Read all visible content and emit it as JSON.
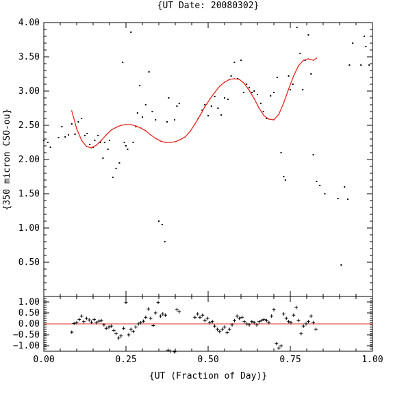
{
  "chart_data": [
    {
      "type": "scatter",
      "title": "{UT Date: 20080302}",
      "ylabel": "{350 micron CSO-ou}",
      "xlim": [
        0,
        1
      ],
      "ylim": [
        0.0,
        4.0
      ],
      "xticks": [
        0.0,
        0.25,
        0.5,
        0.75,
        1.0
      ],
      "xtick_labels": [
        "0.00",
        "0.25",
        "0.50",
        "0.75",
        "1.00"
      ],
      "yticks": [
        0.5,
        1.0,
        1.5,
        2.0,
        2.5,
        3.0,
        3.5,
        4.0
      ],
      "ytick_labels": [
        "0.50",
        "1.00",
        "1.50",
        "2.00",
        "2.50",
        "3.00",
        "3.50",
        "4.00"
      ],
      "points_x": [
        0.0,
        0.012,
        0.02,
        0.045,
        0.055,
        0.065,
        0.075,
        0.085,
        0.095,
        0.105,
        0.115,
        0.125,
        0.132,
        0.14,
        0.15,
        0.155,
        0.165,
        0.172,
        0.18,
        0.185,
        0.195,
        0.2,
        0.21,
        0.22,
        0.23,
        0.24,
        0.245,
        0.25,
        0.255,
        0.265,
        0.272,
        0.28,
        0.285,
        0.292,
        0.3,
        0.31,
        0.32,
        0.33,
        0.34,
        0.35,
        0.36,
        0.368,
        0.375,
        0.38,
        0.398,
        0.405,
        0.412,
        0.47,
        0.482,
        0.49,
        0.5,
        0.51,
        0.52,
        0.53,
        0.54,
        0.55,
        0.56,
        0.57,
        0.58,
        0.59,
        0.6,
        0.608,
        0.617,
        0.625,
        0.633,
        0.64,
        0.65,
        0.66,
        0.668,
        0.678,
        0.69,
        0.7,
        0.71,
        0.722,
        0.73,
        0.735,
        0.745,
        0.75,
        0.758,
        0.77,
        0.78,
        0.788,
        0.795,
        0.805,
        0.813,
        0.82,
        0.83,
        0.84,
        0.855,
        0.895,
        0.905,
        0.915,
        0.925,
        0.93,
        0.94,
        0.965,
        0.975,
        0.98,
        0.99
      ],
      "points_y": [
        2.28,
        2.25,
        2.18,
        2.32,
        2.48,
        2.33,
        2.36,
        2.52,
        2.37,
        2.55,
        2.6,
        2.35,
        2.38,
        2.22,
        2.18,
        2.28,
        2.35,
        2.25,
        2.02,
        2.25,
        2.15,
        2.28,
        1.74,
        1.87,
        1.95,
        3.42,
        2.25,
        2.2,
        2.15,
        3.86,
        2.25,
        2.48,
        2.68,
        3.08,
        2.62,
        2.8,
        3.28,
        2.7,
        2.58,
        1.1,
        1.05,
        0.8,
        2.55,
        2.9,
        2.58,
        2.78,
        2.82,
        2.6,
        2.72,
        2.8,
        2.64,
        2.78,
        2.92,
        2.75,
        2.65,
        2.9,
        2.88,
        3.22,
        3.42,
        3.18,
        3.45,
        2.98,
        3.1,
        3.05,
        2.98,
        3.0,
        2.95,
        2.82,
        2.7,
        2.6,
        2.93,
        2.98,
        3.2,
        2.1,
        1.75,
        1.7,
        3.22,
        3.02,
        3.1,
        3.93,
        3.55,
        3.02,
        3.45,
        3.82,
        3.25,
        2.07,
        1.68,
        1.62,
        1.5,
        1.43,
        0.46,
        1.6,
        1.42,
        3.38,
        3.7,
        3.38,
        3.8,
        3.65,
        3.38
      ],
      "fit_x": [
        0.085,
        0.1,
        0.115,
        0.13,
        0.145,
        0.16,
        0.175,
        0.19,
        0.205,
        0.22,
        0.235,
        0.25,
        0.265,
        0.28,
        0.295,
        0.31,
        0.325,
        0.34,
        0.355,
        0.37,
        0.385,
        0.4,
        0.415,
        0.43,
        0.445,
        0.46,
        0.475,
        0.49,
        0.505,
        0.52,
        0.535,
        0.55,
        0.565,
        0.58,
        0.595,
        0.61,
        0.625,
        0.64,
        0.655,
        0.67,
        0.685,
        0.7,
        0.715,
        0.73,
        0.745,
        0.76,
        0.775,
        0.79,
        0.805,
        0.82,
        0.83
      ],
      "fit_y": [
        2.71,
        2.45,
        2.28,
        2.19,
        2.17,
        2.21,
        2.28,
        2.36,
        2.43,
        2.47,
        2.5,
        2.51,
        2.51,
        2.49,
        2.46,
        2.42,
        2.36,
        2.31,
        2.27,
        2.25,
        2.25,
        2.26,
        2.29,
        2.33,
        2.41,
        2.52,
        2.64,
        2.77,
        2.88,
        2.98,
        3.07,
        3.13,
        3.17,
        3.18,
        3.17,
        3.11,
        3.01,
        2.89,
        2.75,
        2.64,
        2.59,
        2.58,
        2.66,
        2.83,
        3.03,
        3.22,
        3.37,
        3.45,
        3.47,
        3.45,
        3.48
      ],
      "fit_color": "#e8281e"
    },
    {
      "type": "scatter",
      "xlabel": "{UT (Fraction of Day)}",
      "xlim": [
        0,
        1
      ],
      "ylim": [
        -1.25,
        1.25
      ],
      "xticks": [
        0.0,
        0.25,
        0.5,
        0.75,
        1.0
      ],
      "xtick_labels": [
        "0.00",
        "0.25",
        "0.50",
        "0.75",
        "1.00"
      ],
      "yticks": [
        -1.0,
        -0.5,
        0.0,
        0.5,
        1.0
      ],
      "ytick_labels": [
        "−1.00",
        "−0.50",
        "0.00",
        "0.50",
        "1.00"
      ],
      "zero_line_color": "#e8281e",
      "points_x": [
        0.085,
        0.092,
        0.1,
        0.108,
        0.115,
        0.122,
        0.13,
        0.138,
        0.145,
        0.153,
        0.16,
        0.168,
        0.175,
        0.183,
        0.19,
        0.198,
        0.205,
        0.213,
        0.22,
        0.228,
        0.235,
        0.243,
        0.25,
        0.258,
        0.265,
        0.272,
        0.28,
        0.288,
        0.295,
        0.303,
        0.31,
        0.318,
        0.325,
        0.333,
        0.34,
        0.348,
        0.355,
        0.362,
        0.37,
        0.378,
        0.385,
        0.398,
        0.405,
        0.412,
        0.46,
        0.468,
        0.475,
        0.483,
        0.49,
        0.498,
        0.505,
        0.513,
        0.52,
        0.528,
        0.535,
        0.543,
        0.55,
        0.558,
        0.565,
        0.573,
        0.58,
        0.588,
        0.595,
        0.603,
        0.61,
        0.618,
        0.625,
        0.633,
        0.64,
        0.648,
        0.655,
        0.663,
        0.67,
        0.678,
        0.685,
        0.693,
        0.7,
        0.708,
        0.715,
        0.722,
        0.73,
        0.738,
        0.745,
        0.752,
        0.76,
        0.768,
        0.775,
        0.783,
        0.79,
        0.798,
        0.805,
        0.813,
        0.82,
        0.828
      ],
      "points_y": [
        -0.38,
        0.02,
        0.05,
        0.2,
        0.35,
        0.1,
        0.25,
        0.18,
        0.08,
        0.2,
        0.05,
        0.12,
        0.15,
        -0.05,
        -0.2,
        -0.15,
        -0.1,
        -0.3,
        -0.45,
        -0.65,
        -0.55,
        -0.2,
        0.98,
        -0.5,
        -0.25,
        -0.35,
        -0.15,
        0.0,
        0.05,
        0.12,
        0.3,
        0.68,
        0.25,
        -0.08,
        0.5,
        0.98,
        0.35,
        0.45,
        0.4,
        -1.2,
        -1.25,
        -1.28,
        0.65,
        0.55,
        0.3,
        0.45,
        0.3,
        0.4,
        0.15,
        0.25,
        0.05,
        0.1,
        -0.1,
        -0.25,
        -0.35,
        -0.25,
        -0.15,
        -0.4,
        -0.25,
        -0.05,
        0.15,
        0.35,
        0.25,
        0.3,
        0.1,
        0.0,
        -0.05,
        0.1,
        0.05,
        -0.05,
        0.1,
        0.15,
        0.2,
        0.15,
        0.05,
        0.35,
        0.65,
        -0.9,
        -1.1,
        -1.0,
        0.45,
        0.25,
        0.1,
        0.05,
        0.4,
        0.75,
        0.15,
        -0.45,
        -0.1,
        0.0,
        0.1,
        0.35,
        0.05,
        -0.25
      ]
    }
  ]
}
